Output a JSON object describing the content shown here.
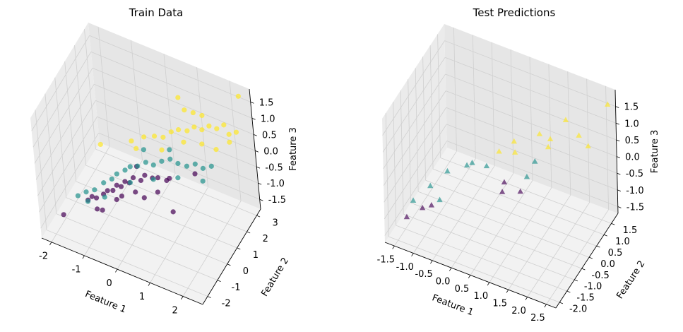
{
  "chart_data": [
    {
      "type": "scatter",
      "projection": "3d",
      "title": "Train Data",
      "xlabel": "Feature 1",
      "ylabel": "Feature 2",
      "zlabel": "Feature 3",
      "marker": "circle",
      "xlim": [
        -2.3,
        2.6
      ],
      "ylim": [
        -2.5,
        3.4
      ],
      "zlim": [
        -1.8,
        1.9
      ],
      "xticks": [
        "-2",
        "-1",
        "0",
        "1",
        "2"
      ],
      "xtick_values": [
        -2,
        -1,
        0,
        1,
        2
      ],
      "yticks": [
        "-2",
        "-1",
        "0",
        "1",
        "2",
        "3"
      ],
      "ytick_values": [
        -2,
        -1,
        0,
        1,
        2,
        3
      ],
      "zticks": [
        "-1.5",
        "-1.0",
        "-0.5",
        "0.0",
        "0.5",
        "1.0",
        "1.5"
      ],
      "ztick_values": [
        -1.5,
        -1.0,
        -0.5,
        0.0,
        0.5,
        1.0,
        1.5
      ],
      "class_colors": [
        "#440154",
        "#21918c",
        "#fde725"
      ],
      "points": [
        [
          -2.0,
          -1.2,
          -1.6,
          0
        ],
        [
          -1.4,
          -0.6,
          -1.2,
          0
        ],
        [
          -1.3,
          -0.5,
          -1.1,
          0
        ],
        [
          -1.2,
          -0.4,
          -1.15,
          0
        ],
        [
          -1.0,
          -0.3,
          -1.0,
          0
        ],
        [
          -0.9,
          -0.2,
          -0.9,
          0
        ],
        [
          -0.8,
          0.0,
          -0.95,
          0
        ],
        [
          -0.7,
          0.1,
          -0.8,
          0
        ],
        [
          -0.6,
          0.2,
          -0.85,
          0
        ],
        [
          -0.5,
          0.3,
          -0.7,
          0
        ],
        [
          -0.4,
          0.4,
          -0.75,
          0
        ],
        [
          -0.3,
          0.5,
          -0.6,
          0
        ],
        [
          -0.2,
          0.3,
          -0.9,
          0
        ],
        [
          -0.1,
          0.6,
          -0.65,
          0
        ],
        [
          0.0,
          0.7,
          -0.5,
          0
        ],
        [
          0.2,
          0.8,
          -0.55,
          0
        ],
        [
          0.3,
          1.0,
          -0.6,
          0
        ],
        [
          0.5,
          1.2,
          -0.7,
          0
        ],
        [
          0.7,
          0.9,
          -0.4,
          0
        ],
        [
          -1.1,
          -0.7,
          -1.3,
          0
        ],
        [
          -0.9,
          -0.8,
          -1.2,
          0
        ],
        [
          -0.6,
          -0.3,
          -1.0,
          0
        ],
        [
          0.1,
          0.2,
          -0.9,
          0
        ],
        [
          0.4,
          0.6,
          -0.8,
          0
        ],
        [
          -0.3,
          0.9,
          -0.45,
          0
        ],
        [
          1.2,
          1.8,
          -0.5,
          0
        ],
        [
          0.9,
          0.4,
          -1.1,
          0
        ],
        [
          -0.5,
          -0.1,
          -0.95,
          0
        ],
        [
          -1.6,
          -0.9,
          -1.0,
          1
        ],
        [
          -1.4,
          -0.7,
          -0.9,
          1
        ],
        [
          -1.2,
          -0.5,
          -0.85,
          1
        ],
        [
          -1.0,
          -0.2,
          -0.7,
          1
        ],
        [
          -0.8,
          0.0,
          -0.6,
          1
        ],
        [
          -0.7,
          0.2,
          -0.5,
          1
        ],
        [
          -0.5,
          0.4,
          -0.4,
          1
        ],
        [
          -0.4,
          0.6,
          -0.35,
          1
        ],
        [
          -0.2,
          0.7,
          -0.3,
          1
        ],
        [
          0.0,
          0.9,
          -0.2,
          1
        ],
        [
          0.2,
          1.0,
          -0.25,
          1
        ],
        [
          0.4,
          1.2,
          -0.15,
          1
        ],
        [
          0.6,
          1.4,
          -0.1,
          1
        ],
        [
          0.8,
          1.5,
          -0.2,
          1
        ],
        [
          1.0,
          1.7,
          -0.3,
          1
        ],
        [
          1.2,
          1.9,
          -0.25,
          1
        ],
        [
          1.4,
          2.0,
          -0.35,
          1
        ],
        [
          1.6,
          2.2,
          -0.3,
          1
        ],
        [
          -0.9,
          -0.5,
          -0.95,
          1
        ],
        [
          -1.3,
          -0.9,
          -1.05,
          1
        ],
        [
          -0.3,
          0.2,
          -0.6,
          1
        ],
        [
          0.3,
          0.6,
          -0.45,
          1
        ],
        [
          0.9,
          1.1,
          -0.4,
          1
        ],
        [
          1.5,
          1.6,
          -0.5,
          1
        ],
        [
          -0.1,
          1.1,
          0.05,
          1
        ],
        [
          0.5,
          1.7,
          0.0,
          1
        ],
        [
          -1.2,
          0.4,
          0.1,
          2
        ],
        [
          -0.5,
          1.2,
          0.1,
          2
        ],
        [
          -0.2,
          1.5,
          0.2,
          2
        ],
        [
          0.1,
          1.6,
          0.3,
          2
        ],
        [
          0.3,
          1.8,
          0.25,
          2
        ],
        [
          0.5,
          2.0,
          0.4,
          2
        ],
        [
          0.7,
          2.1,
          0.5,
          2
        ],
        [
          0.9,
          2.3,
          0.45,
          2
        ],
        [
          1.1,
          2.4,
          0.6,
          2
        ],
        [
          1.3,
          2.5,
          0.55,
          2
        ],
        [
          1.5,
          2.6,
          0.7,
          2
        ],
        [
          1.7,
          2.7,
          0.65,
          2
        ],
        [
          1.9,
          2.8,
          0.8,
          2
        ],
        [
          2.0,
          2.9,
          0.5,
          2
        ],
        [
          2.2,
          3.0,
          0.6,
          2
        ],
        [
          0.6,
          2.6,
          1.2,
          2
        ],
        [
          0.8,
          2.5,
          0.95,
          2
        ],
        [
          1.0,
          2.7,
          0.85,
          2
        ],
        [
          1.2,
          2.9,
          0.75,
          2
        ],
        [
          0.4,
          1.3,
          0.15,
          2
        ],
        [
          -0.3,
          1.0,
          0.05,
          2
        ],
        [
          2.3,
          3.2,
          1.65,
          2
        ],
        [
          1.8,
          2.2,
          0.3,
          2
        ],
        [
          1.4,
          2.1,
          0.35,
          2
        ],
        [
          0.9,
          1.9,
          0.3,
          2
        ],
        [
          2.1,
          2.6,
          0.45,
          2
        ]
      ]
    },
    {
      "type": "scatter",
      "projection": "3d",
      "title": "Test Predictions",
      "xlabel": "Feature 1",
      "ylabel": "Feature 2",
      "zlabel": "Feature 3",
      "marker": "triangle",
      "xlim": [
        -1.75,
        2.75
      ],
      "ylim": [
        -2.25,
        1.95
      ],
      "zlim": [
        -1.7,
        2.0
      ],
      "xticks": [
        "-1.5",
        "-1.0",
        "-0.5",
        "0.0",
        "0.5",
        "1.0",
        "1.5",
        "2.0",
        "2.5"
      ],
      "xtick_values": [
        -1.5,
        -1.0,
        -0.5,
        0.0,
        0.5,
        1.0,
        1.5,
        2.0,
        2.5
      ],
      "yticks": [
        "-2.0",
        "-1.5",
        "-1.0",
        "-0.5",
        "0.0",
        "0.5",
        "1.0",
        "1.5"
      ],
      "ytick_values": [
        -2.0,
        -1.5,
        -1.0,
        -0.5,
        0.0,
        0.5,
        1.0,
        1.5
      ],
      "zticks": [
        "-1.5",
        "-1.0",
        "-0.5",
        "0.0",
        "0.5",
        "1.0",
        "1.5"
      ],
      "ztick_values": [
        -1.5,
        -1.0,
        -0.5,
        0.0,
        0.5,
        1.0,
        1.5
      ],
      "class_colors": [
        "#440154",
        "#21918c",
        "#fde725"
      ],
      "points": [
        [
          -1.5,
          -1.4,
          -1.4,
          0
        ],
        [
          -1.2,
          -1.1,
          -1.2,
          0
        ],
        [
          -1.0,
          -1.0,
          -1.1,
          0
        ],
        [
          0.4,
          0.2,
          -0.9,
          0
        ],
        [
          0.8,
          0.4,
          -0.85,
          0
        ],
        [
          0.5,
          0.1,
          -0.5,
          0
        ],
        [
          -1.4,
          -1.2,
          -1.0,
          1
        ],
        [
          -0.9,
          -0.7,
          -1.1,
          1
        ],
        [
          -1.1,
          -0.8,
          -0.7,
          1
        ],
        [
          -0.8,
          -0.4,
          -0.4,
          1
        ],
        [
          -0.3,
          0.0,
          -0.2,
          1
        ],
        [
          0.0,
          0.2,
          -0.3,
          1
        ],
        [
          0.9,
          0.6,
          -0.5,
          1
        ],
        [
          1.0,
          0.9,
          -0.2,
          1
        ],
        [
          -0.4,
          -0.1,
          -0.25,
          1
        ],
        [
          0.3,
          0.3,
          0.2,
          2
        ],
        [
          0.6,
          0.6,
          0.1,
          2
        ],
        [
          1.1,
          1.0,
          0.6,
          2
        ],
        [
          1.3,
          1.2,
          0.4,
          2
        ],
        [
          1.6,
          1.5,
          0.9,
          2
        ],
        [
          1.9,
          1.6,
          0.5,
          2
        ],
        [
          2.1,
          1.7,
          0.2,
          2
        ],
        [
          2.6,
          1.8,
          1.6,
          2
        ],
        [
          0.5,
          0.8,
          0.25,
          2
        ],
        [
          1.2,
          1.3,
          0.05,
          2
        ]
      ]
    }
  ]
}
